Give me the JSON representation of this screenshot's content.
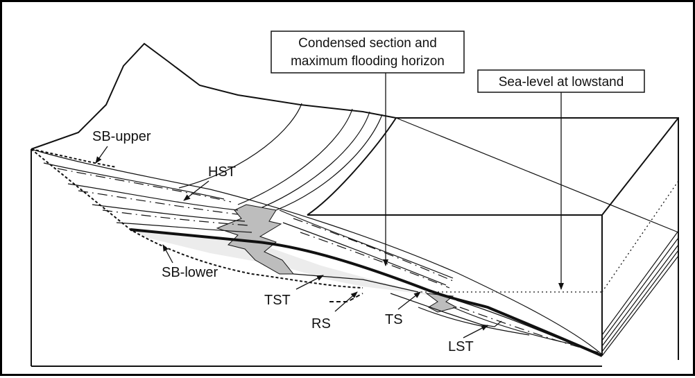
{
  "callouts": {
    "condensed_line1": "Condensed section and",
    "condensed_line2": "maximum flooding horizon",
    "sea_level": "Sea-level at lowstand"
  },
  "labels": {
    "sb_upper": "SB-upper",
    "hst": "HST",
    "sb_lower": "SB-lower",
    "tst": "TST",
    "rs": "RS",
    "ts": "TS",
    "lst": "LST"
  },
  "colors": {
    "ink": "#111111",
    "condensed_fill": "#bdbdbd",
    "tst_fill": "#ececec",
    "background": "#ffffff"
  }
}
